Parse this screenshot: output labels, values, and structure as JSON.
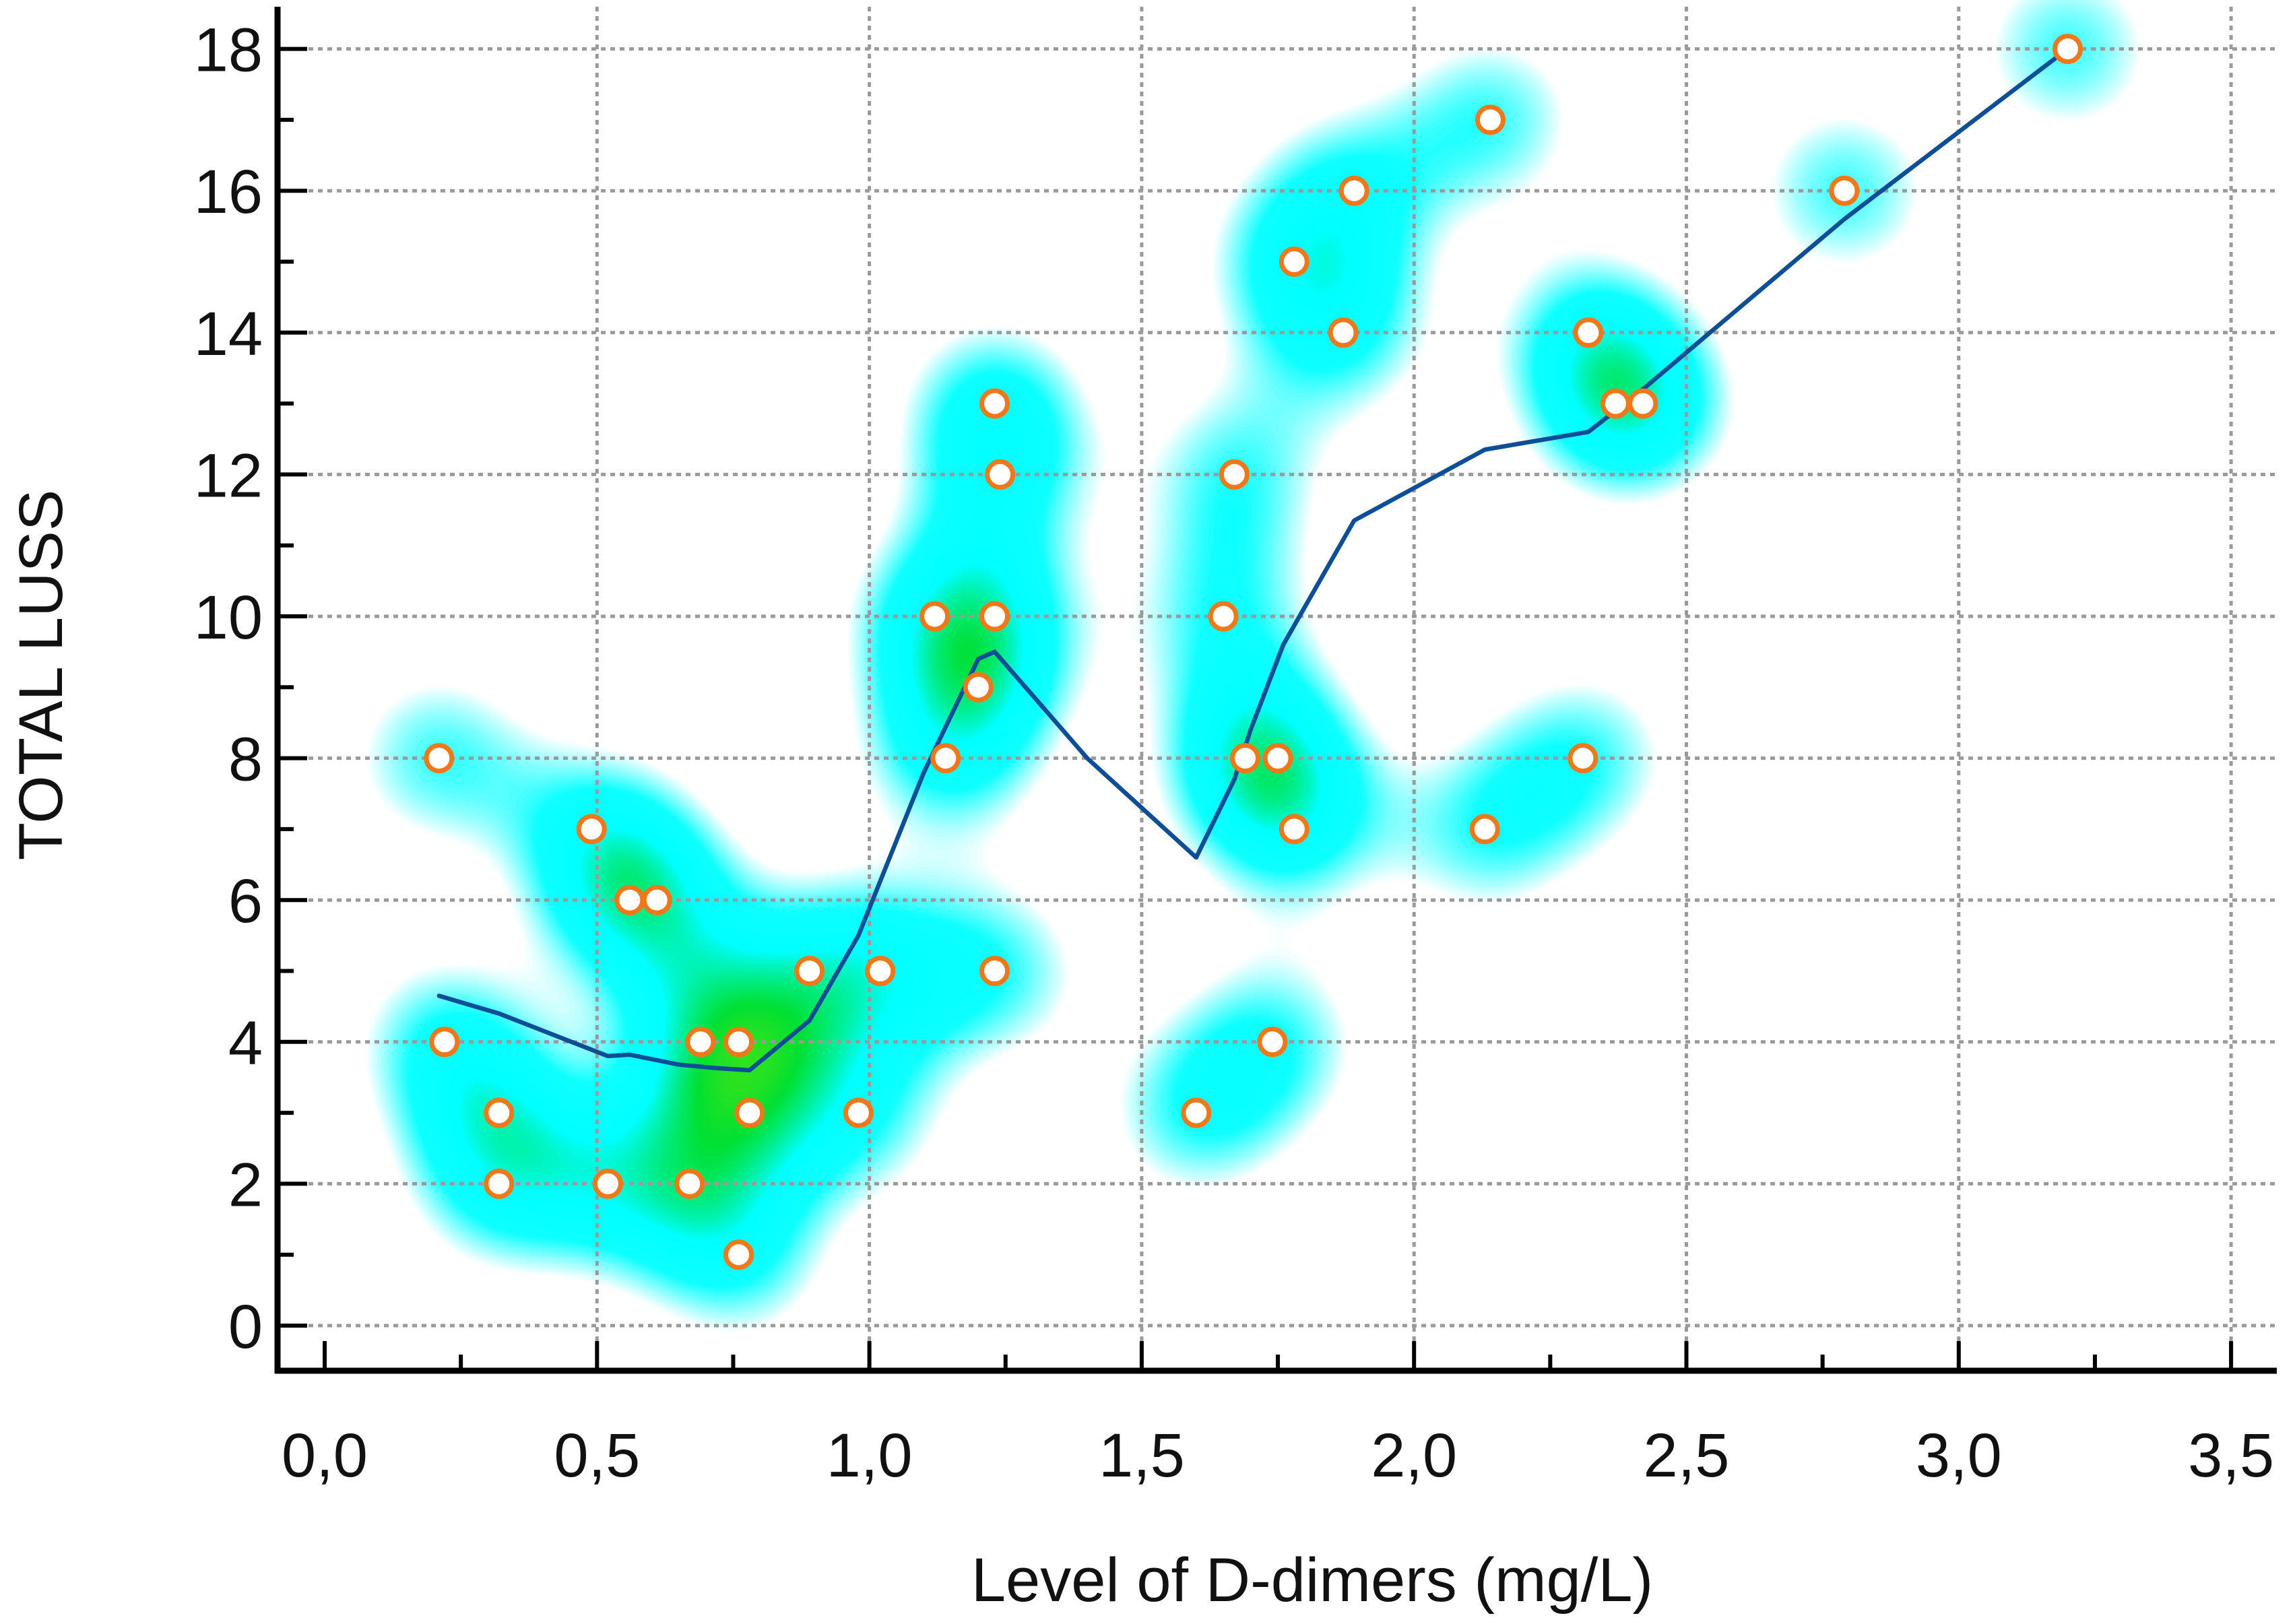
{
  "chart_data": {
    "type": "scatter",
    "title": "",
    "xlabel": "Level of D-dimers (mg/L)",
    "ylabel": "TOTAL LUSS",
    "xlim": [
      0.0,
      3.5
    ],
    "ylim": [
      0,
      18
    ],
    "x_ticks": [
      0.0,
      0.5,
      1.0,
      1.5,
      2.0,
      2.5,
      3.0,
      3.5
    ],
    "x_tick_labels": [
      "0,0",
      "0,5",
      "1,0",
      "1,5",
      "2,0",
      "2,5",
      "3,0",
      "3,5"
    ],
    "y_ticks": [
      0,
      2,
      4,
      6,
      8,
      10,
      12,
      14,
      16,
      18
    ],
    "y_tick_labels": [
      "0",
      "2",
      "4",
      "6",
      "8",
      "10",
      "12",
      "14",
      "16",
      "18"
    ],
    "grid": true,
    "background": "density heatmap (cyan → green → yellow → red)",
    "colors": {
      "point_fill": "#ffffff",
      "point_edge": "#f07818",
      "trend_line": "#0e4e96",
      "heat_low": "#00ffff",
      "heat_mid": "#00e000",
      "heat_high": "#ffff00",
      "heat_peak": "#e00000"
    },
    "points": [
      {
        "x": 0.21,
        "y": 8
      },
      {
        "x": 0.22,
        "y": 4
      },
      {
        "x": 0.32,
        "y": 3
      },
      {
        "x": 0.32,
        "y": 2
      },
      {
        "x": 0.49,
        "y": 7
      },
      {
        "x": 0.52,
        "y": 2
      },
      {
        "x": 0.56,
        "y": 6
      },
      {
        "x": 0.61,
        "y": 6
      },
      {
        "x": 0.67,
        "y": 2
      },
      {
        "x": 0.69,
        "y": 4
      },
      {
        "x": 0.76,
        "y": 4
      },
      {
        "x": 0.76,
        "y": 1
      },
      {
        "x": 0.78,
        "y": 3
      },
      {
        "x": 0.89,
        "y": 5
      },
      {
        "x": 0.98,
        "y": 3
      },
      {
        "x": 1.02,
        "y": 5
      },
      {
        "x": 1.12,
        "y": 10
      },
      {
        "x": 1.14,
        "y": 8
      },
      {
        "x": 1.2,
        "y": 9
      },
      {
        "x": 1.23,
        "y": 13
      },
      {
        "x": 1.23,
        "y": 10
      },
      {
        "x": 1.23,
        "y": 5
      },
      {
        "x": 1.24,
        "y": 12
      },
      {
        "x": 1.6,
        "y": 3
      },
      {
        "x": 1.65,
        "y": 10
      },
      {
        "x": 1.67,
        "y": 12
      },
      {
        "x": 1.69,
        "y": 8
      },
      {
        "x": 1.74,
        "y": 4
      },
      {
        "x": 1.75,
        "y": 8
      },
      {
        "x": 1.78,
        "y": 15
      },
      {
        "x": 1.78,
        "y": 7
      },
      {
        "x": 1.87,
        "y": 14
      },
      {
        "x": 1.89,
        "y": 16
      },
      {
        "x": 2.13,
        "y": 7
      },
      {
        "x": 2.14,
        "y": 17
      },
      {
        "x": 2.31,
        "y": 8
      },
      {
        "x": 2.32,
        "y": 14
      },
      {
        "x": 2.37,
        "y": 13
      },
      {
        "x": 2.42,
        "y": 13
      },
      {
        "x": 2.79,
        "y": 16
      },
      {
        "x": 3.2,
        "y": 18
      }
    ],
    "trend": [
      {
        "x": 0.21,
        "y": 4.65
      },
      {
        "x": 0.32,
        "y": 4.4
      },
      {
        "x": 0.42,
        "y": 4.1
      },
      {
        "x": 0.52,
        "y": 3.8
      },
      {
        "x": 0.56,
        "y": 3.82
      },
      {
        "x": 0.65,
        "y": 3.68
      },
      {
        "x": 0.72,
        "y": 3.63
      },
      {
        "x": 0.78,
        "y": 3.6
      },
      {
        "x": 0.89,
        "y": 4.3
      },
      {
        "x": 0.98,
        "y": 5.5
      },
      {
        "x": 1.1,
        "y": 7.8
      },
      {
        "x": 1.2,
        "y": 9.4
      },
      {
        "x": 1.23,
        "y": 9.5
      },
      {
        "x": 1.4,
        "y": 8.0
      },
      {
        "x": 1.6,
        "y": 6.6
      },
      {
        "x": 1.67,
        "y": 7.7
      },
      {
        "x": 1.7,
        "y": 8.4
      },
      {
        "x": 1.76,
        "y": 9.6
      },
      {
        "x": 1.89,
        "y": 11.35
      },
      {
        "x": 2.13,
        "y": 12.35
      },
      {
        "x": 2.32,
        "y": 12.6
      },
      {
        "x": 2.42,
        "y": 13.2
      },
      {
        "x": 2.79,
        "y": 15.6
      },
      {
        "x": 3.2,
        "y": 18.0
      }
    ]
  }
}
